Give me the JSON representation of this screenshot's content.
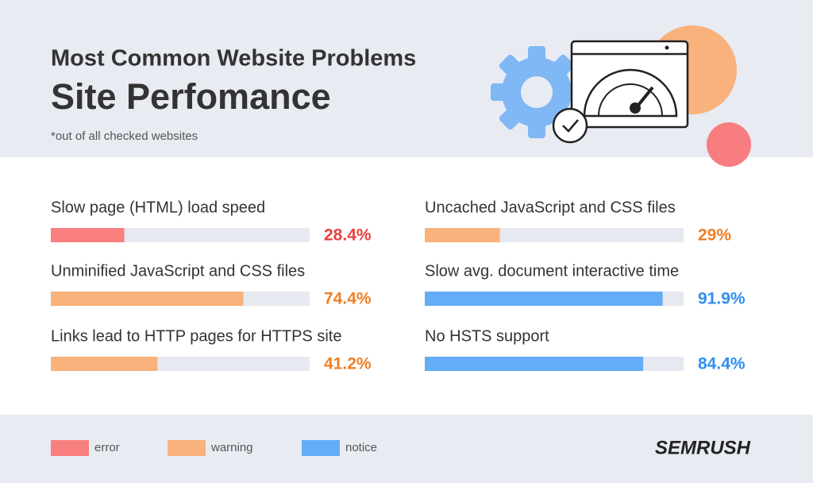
{
  "chart_data": {
    "type": "bar",
    "title": "Most Common Website Problems",
    "subtitle": "Site Perfomance",
    "note": "*out of all checked websites",
    "categories": [
      "Slow page (HTML) load speed",
      "Unminified JavaScript and CSS files",
      "Links lead to HTTP pages for HTTPS site",
      "Uncached JavaScript and CSS files",
      "Slow avg. document interactive time",
      "No HSTS support"
    ],
    "values": [
      28.4,
      74.4,
      41.2,
      29,
      91.9,
      84.4
    ],
    "value_labels": [
      "28.4%",
      "74.4%",
      "41.2%",
      "29%",
      "91.9%",
      "84.4%"
    ],
    "levels": [
      "error",
      "warning",
      "warning",
      "warning",
      "notice",
      "notice"
    ],
    "legend": [
      {
        "name": "error",
        "color": "#fa8080",
        "label_color": "#e8403e"
      },
      {
        "name": "warning",
        "color": "#f9b27c",
        "label_color": "#f07f24"
      },
      {
        "name": "notice",
        "color": "#64acf6",
        "label_color": "#2f8ff0"
      }
    ],
    "xlim": [
      0,
      100
    ],
    "brand": "SEMRUSH"
  }
}
